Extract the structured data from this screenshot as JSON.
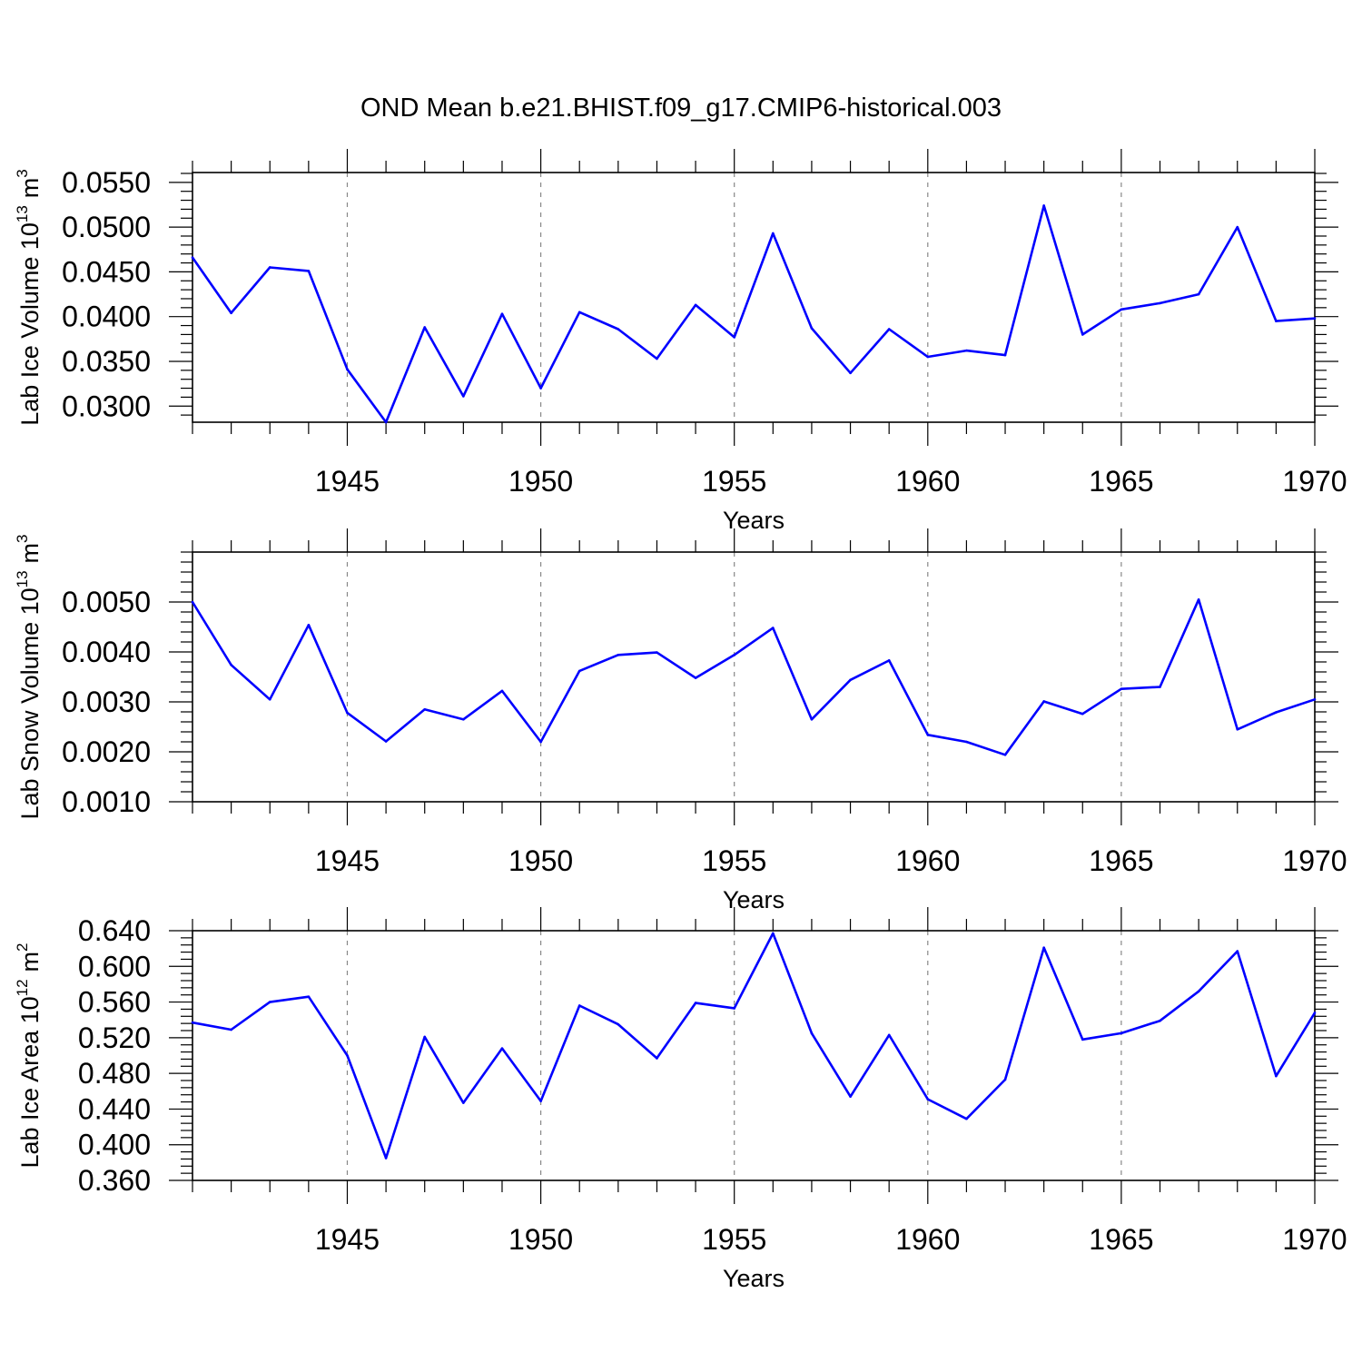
{
  "figure": {
    "title": "OND Mean b.e21.BHIST.f09_g17.CMIP6-historical.003",
    "line_color": "#0000ff"
  },
  "chart_data": [
    {
      "type": "line",
      "xlabel": "Years",
      "ylabel": "Lab Ice Volume 10",
      "ylabel_exp": "13",
      "ylabel_unit": "m",
      "ylabel_unit_exp": "3",
      "xlim": [
        1941,
        1970
      ],
      "ylim": [
        0.0282,
        0.0561
      ],
      "xticks": [
        "1945",
        "1950",
        "1955",
        "1960",
        "1965",
        "1970"
      ],
      "yticks": [
        "0.0300",
        "0.0350",
        "0.0400",
        "0.0450",
        "0.0500",
        "0.0550"
      ],
      "x": [
        1941,
        1942,
        1943,
        1944,
        1945,
        1946,
        1947,
        1948,
        1949,
        1950,
        1951,
        1952,
        1953,
        1954,
        1955,
        1956,
        1957,
        1958,
        1959,
        1960,
        1961,
        1962,
        1963,
        1964,
        1965,
        1966,
        1967,
        1968,
        1969,
        1970
      ],
      "values": [
        0.0466,
        0.0404,
        0.0455,
        0.0451,
        0.0341,
        0.0282,
        0.0388,
        0.0311,
        0.0403,
        0.032,
        0.0405,
        0.0386,
        0.0353,
        0.0413,
        0.0377,
        0.0493,
        0.0387,
        0.0337,
        0.0386,
        0.0355,
        0.0362,
        0.0357,
        0.0524,
        0.038,
        0.0408,
        0.0415,
        0.0425,
        0.05,
        0.0395,
        0.0398
      ]
    },
    {
      "type": "line",
      "xlabel": "Years",
      "ylabel": "Lab Snow Volume 10",
      "ylabel_exp": "13",
      "ylabel_unit": "m",
      "ylabel_unit_exp": "3",
      "xlim": [
        1941,
        1970
      ],
      "ylim": [
        0.001,
        0.006
      ],
      "xticks": [
        "1945",
        "1950",
        "1955",
        "1960",
        "1965",
        "1970"
      ],
      "yticks": [
        "0.0010",
        "0.0020",
        "0.0030",
        "0.0040",
        "0.0050"
      ],
      "x": [
        1941,
        1942,
        1943,
        1944,
        1945,
        1946,
        1947,
        1948,
        1949,
        1950,
        1951,
        1952,
        1953,
        1954,
        1955,
        1956,
        1957,
        1958,
        1959,
        1960,
        1961,
        1962,
        1963,
        1964,
        1965,
        1966,
        1967,
        1968,
        1969,
        1970
      ],
      "values": [
        0.005,
        0.00374,
        0.00305,
        0.00454,
        0.00278,
        0.00221,
        0.00285,
        0.00265,
        0.00322,
        0.0022,
        0.00362,
        0.00394,
        0.00399,
        0.00348,
        0.00394,
        0.00448,
        0.00265,
        0.00344,
        0.00383,
        0.00234,
        0.0022,
        0.00194,
        0.00301,
        0.00276,
        0.00326,
        0.0033,
        0.00505,
        0.00245,
        0.00279,
        0.00305
      ]
    },
    {
      "type": "line",
      "xlabel": "Years",
      "ylabel": "Lab Ice Area 10",
      "ylabel_exp": "12",
      "ylabel_unit": "m",
      "ylabel_unit_exp": "2",
      "xlim": [
        1941,
        1970
      ],
      "ylim": [
        0.36,
        0.64
      ],
      "xticks": [
        "1945",
        "1950",
        "1955",
        "1960",
        "1965",
        "1970"
      ],
      "yticks": [
        "0.360",
        "0.400",
        "0.440",
        "0.480",
        "0.520",
        "0.560",
        "0.600",
        "0.640"
      ],
      "x": [
        1941,
        1942,
        1943,
        1944,
        1945,
        1946,
        1947,
        1948,
        1949,
        1950,
        1951,
        1952,
        1953,
        1954,
        1955,
        1956,
        1957,
        1958,
        1959,
        1960,
        1961,
        1962,
        1963,
        1964,
        1965,
        1966,
        1967,
        1968,
        1969,
        1970
      ],
      "values": [
        0.537,
        0.529,
        0.56,
        0.566,
        0.5,
        0.385,
        0.521,
        0.447,
        0.508,
        0.449,
        0.556,
        0.535,
        0.497,
        0.559,
        0.553,
        0.637,
        0.525,
        0.454,
        0.523,
        0.451,
        0.429,
        0.473,
        0.621,
        0.518,
        0.525,
        0.539,
        0.572,
        0.617,
        0.477,
        0.548
      ]
    }
  ]
}
